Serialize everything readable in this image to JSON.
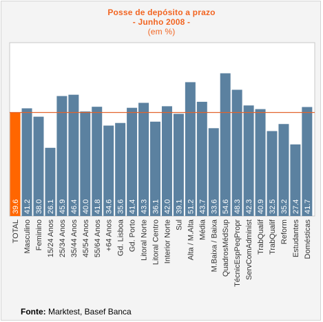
{
  "title": "Posse de depósito a prazo",
  "subtitle": "- Junho 2008 -",
  "unit": "(em %)",
  "source_label": "Fonte:",
  "source_text": "Marktest, Basef Banca",
  "colors": {
    "title": "#f26522",
    "bar": "#5b81a0",
    "highlight_bar": "#ff6600",
    "reference_line": "#e2632c",
    "plot_background": "#ffffff",
    "frame_background": "#f4f4f4"
  },
  "chart_data": {
    "type": "bar",
    "title": "Posse de depósito a prazo",
    "subtitle": "- Junho 2008 -",
    "ylabel": "(em %)",
    "ylim": [
      0,
      60
    ],
    "grid": false,
    "legend": "none",
    "reference_line": 39.6,
    "highlighted_category": "TOTAL",
    "categories": [
      "TOTAL",
      "Masculino",
      "Feminino",
      "15/24 Anos",
      "25/34 Anos",
      "35/44 Anos",
      "45/54 Anos",
      "55/64 Anos",
      "+64 Anos",
      "Gd. Lisboa",
      "Gd. Porto",
      "Litoral Norte",
      "Litoral Centro",
      "Interior Norte",
      "Sul",
      "Alta / M.Alta",
      "Média",
      "M.Baixa / Baixa",
      "QuadrosMédSup",
      "TécnicEspPeqPropr",
      "ServComAdminist",
      "TrabQualif",
      "TrabQualif",
      "Reform",
      "Estudantes",
      "Domésticas"
    ],
    "values": [
      39.6,
      41.2,
      38.0,
      26.1,
      45.9,
      46.4,
      40.0,
      41.8,
      34.6,
      35.6,
      41.4,
      43.3,
      36.1,
      42.0,
      39.1,
      51.2,
      43.7,
      33.6,
      54.6,
      48.3,
      42.3,
      40.9,
      32.5,
      35.2,
      27.4,
      41.7
    ],
    "value_labels": [
      "39.6",
      "41.2",
      "38.0",
      "26.1",
      "45.9",
      "46.4",
      "40.0",
      "41.8",
      "34.6",
      "35.6",
      "41.4",
      "43.3",
      "36.1",
      "42.0",
      "39.1",
      "51.2",
      "43.7",
      "33.6",
      "54.6",
      "48.3",
      "42.3",
      "40.9",
      "32.5",
      "35.2",
      "27.4",
      "41.7"
    ]
  }
}
